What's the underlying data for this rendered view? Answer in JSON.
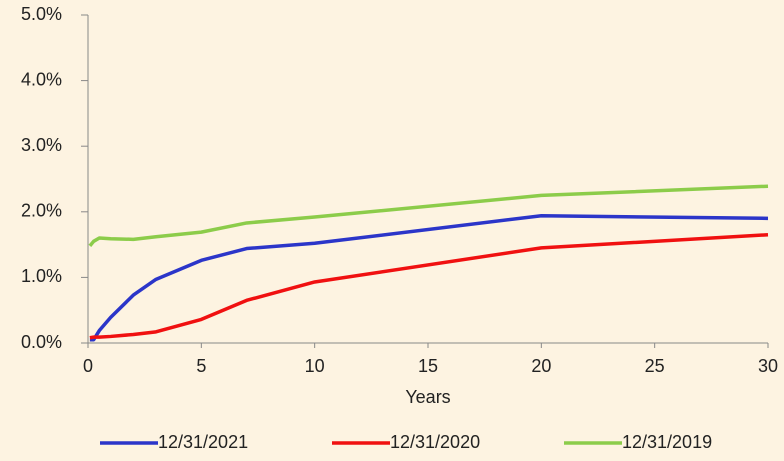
{
  "chart_data": {
    "type": "line",
    "xlabel": "Years",
    "x": [
      0.083,
      0.25,
      0.5,
      1,
      2,
      3,
      5,
      7,
      10,
      20,
      30
    ],
    "series": [
      {
        "name": "12/31/2021",
        "color": "#2b35c9",
        "values": [
          0.05,
          0.05,
          0.19,
          0.39,
          0.73,
          0.97,
          1.26,
          1.44,
          1.52,
          1.94,
          1.9
        ]
      },
      {
        "name": "12/31/2020",
        "color": "#f01010",
        "values": [
          0.08,
          0.09,
          0.09,
          0.1,
          0.13,
          0.17,
          0.36,
          0.65,
          0.93,
          1.45,
          1.65
        ]
      },
      {
        "name": "12/31/2019",
        "color": "#8ccc4a",
        "values": [
          1.48,
          1.55,
          1.6,
          1.59,
          1.58,
          1.62,
          1.69,
          1.83,
          1.92,
          2.25,
          2.39
        ]
      }
    ],
    "xlim": [
      0,
      30
    ],
    "xticks": [
      0,
      5,
      10,
      15,
      20,
      25,
      30
    ],
    "ylim": [
      0,
      5
    ],
    "yticks": [
      {
        "value": 0,
        "label": "0.0%"
      },
      {
        "value": 1,
        "label": "1.0%"
      },
      {
        "value": 2,
        "label": "2.0%"
      },
      {
        "value": 3,
        "label": "3.0%"
      },
      {
        "value": 4,
        "label": "4.0%"
      },
      {
        "value": 5,
        "label": "5.0%"
      }
    ],
    "legend": "bottom"
  }
}
